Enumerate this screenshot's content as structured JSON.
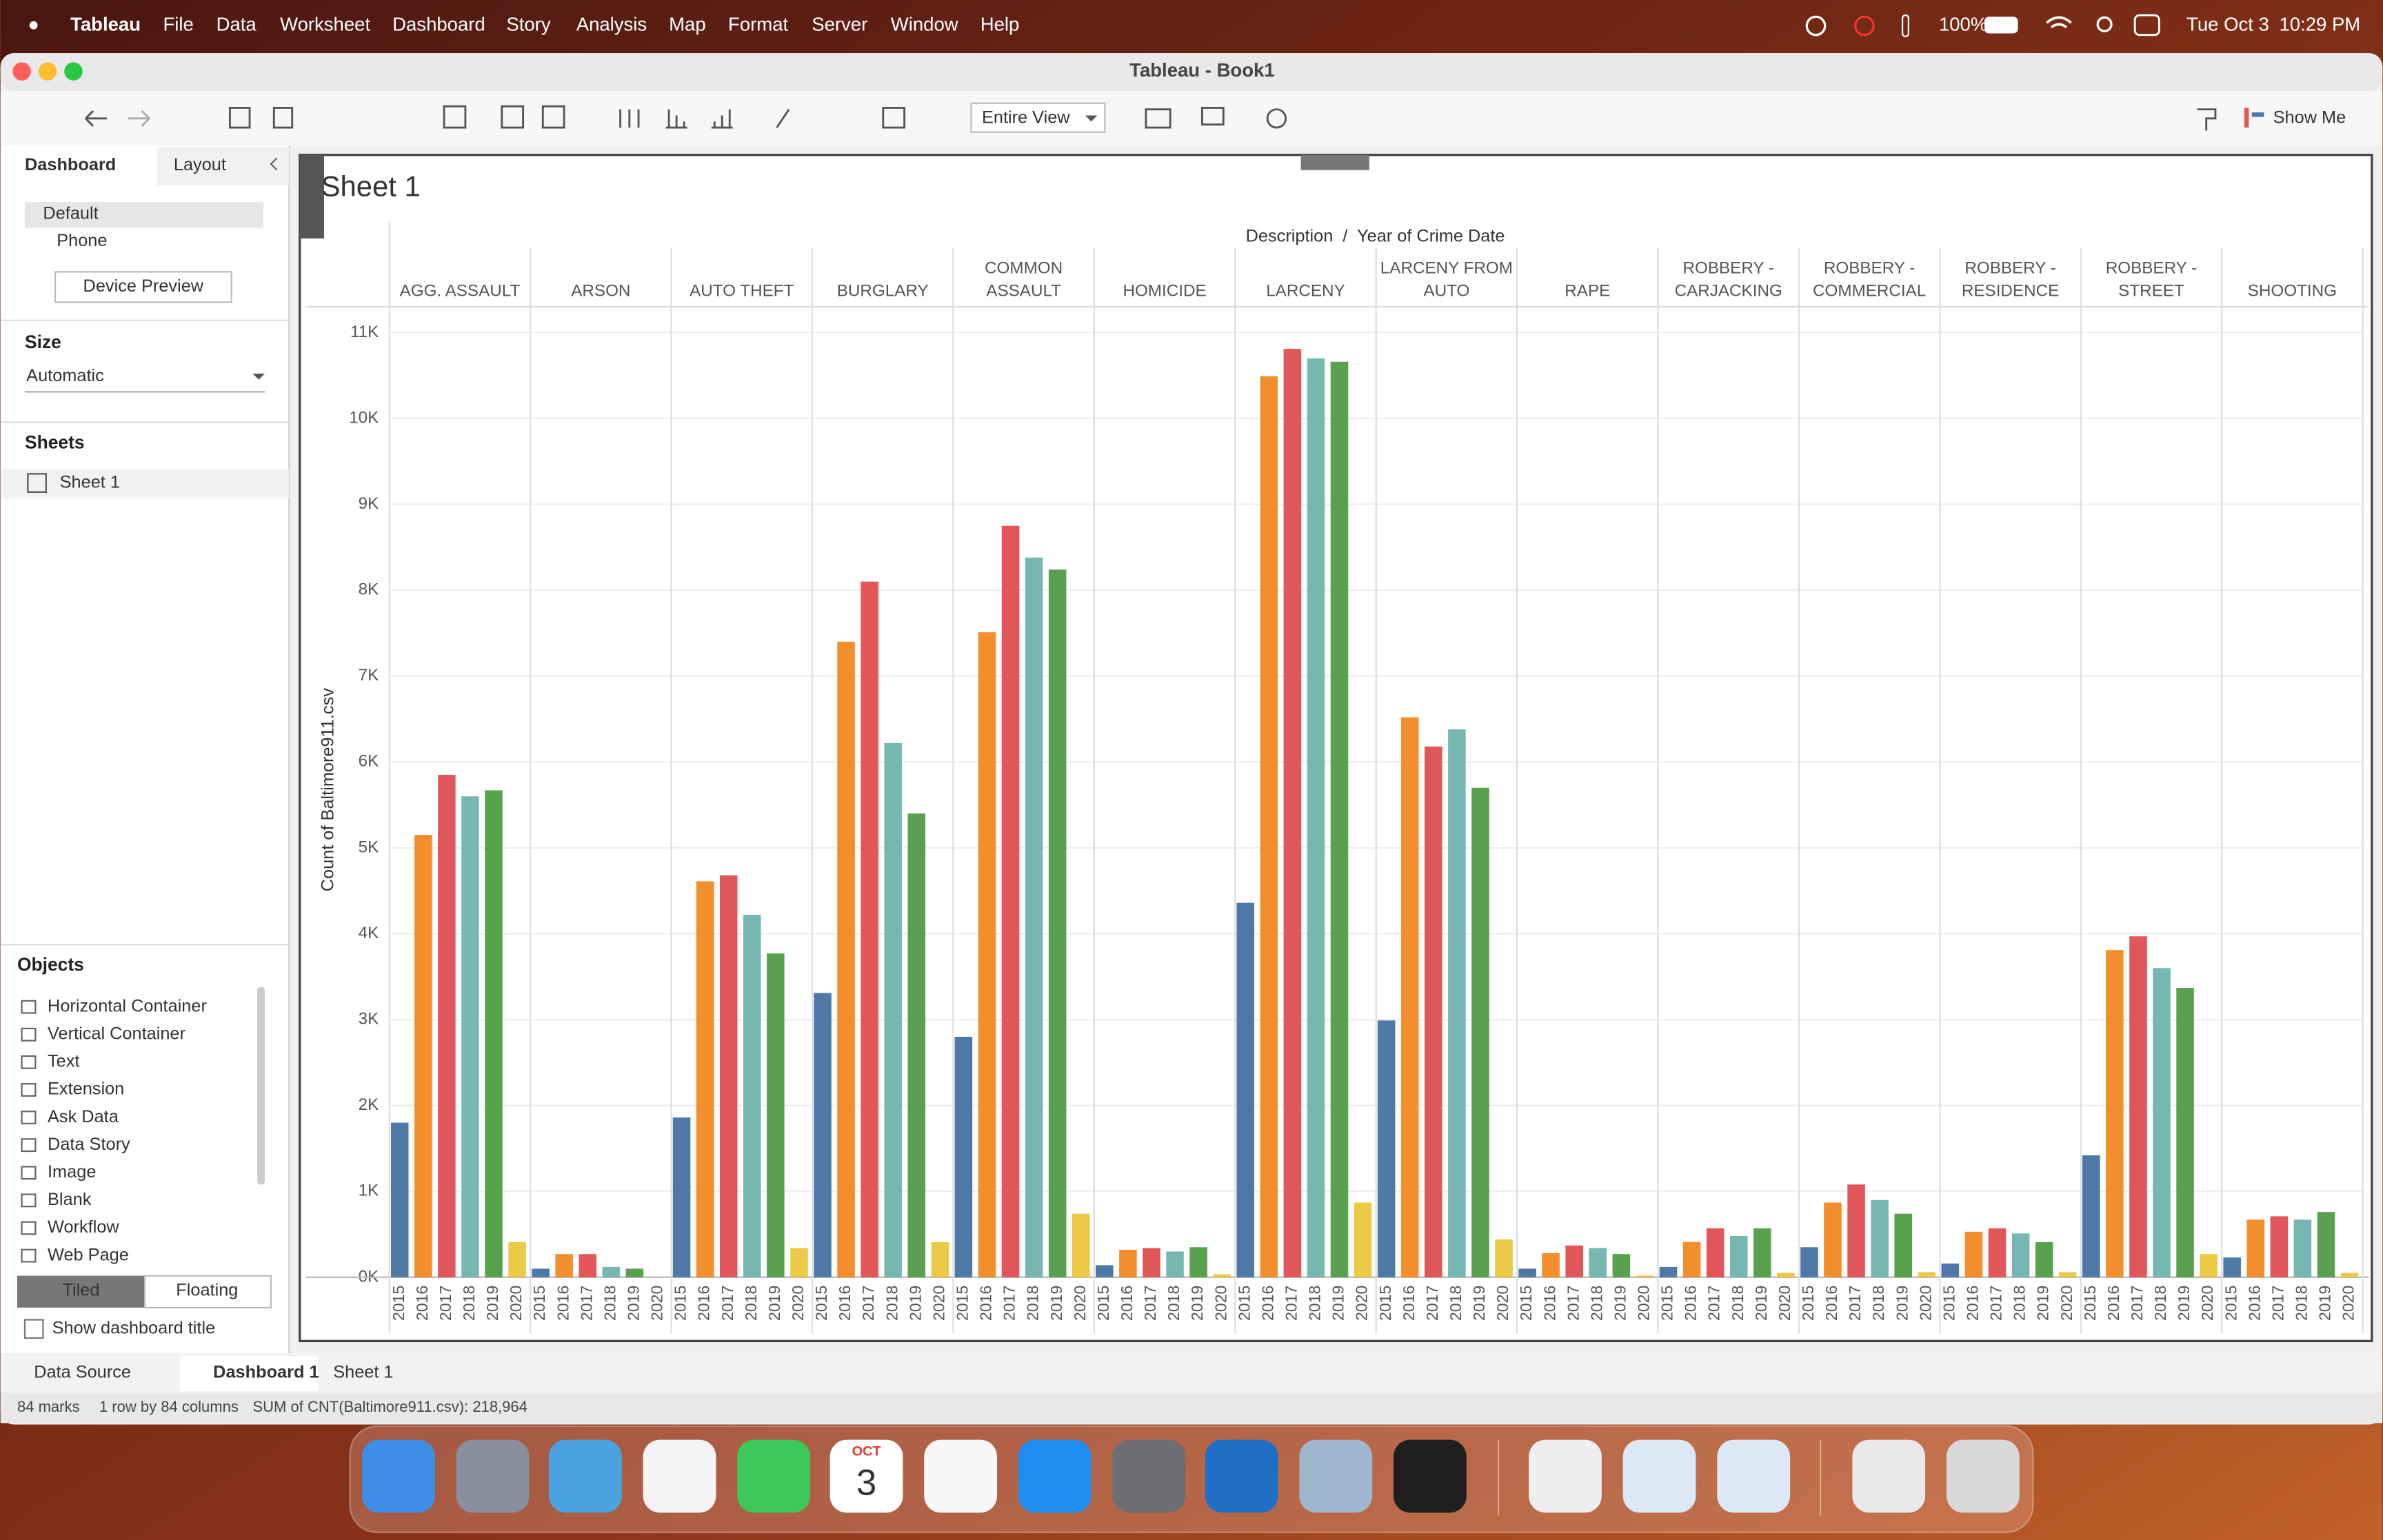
{
  "menu": {
    "app": "Tableau",
    "items": [
      "File",
      "Data",
      "Worksheet",
      "Dashboard",
      "Story",
      "Analysis",
      "Map",
      "Format",
      "Server",
      "Window",
      "Help"
    ],
    "battery": "100%",
    "date": "Tue Oct 3",
    "time": "10:29 PM"
  },
  "window_title": "Tableau - Book1",
  "toolbar": {
    "fit": "Entire View",
    "show_me": "Show Me"
  },
  "sidebar": {
    "tabs": [
      "Dashboard",
      "Layout"
    ],
    "devices": [
      "Default",
      "Phone"
    ],
    "device_preview": "Device Preview",
    "size_title": "Size",
    "size_value": "Automatic",
    "sheets_title": "Sheets",
    "sheets": [
      "Sheet 1"
    ],
    "objects_title": "Objects",
    "objects": [
      "Horizontal Container",
      "Vertical Container",
      "Text",
      "Extension",
      "Ask Data",
      "Data Story",
      "Image",
      "Blank",
      "Workflow",
      "Web Page"
    ],
    "layout_modes": [
      "Tiled",
      "Floating"
    ],
    "show_title": "Show dashboard title"
  },
  "tabs": [
    "Data Source",
    "Dashboard 1",
    "Sheet 1"
  ],
  "status_bar": [
    "84 marks",
    "1 row by 84 columns",
    "SUM of CNT(Baltimore911.csv): 218,964"
  ],
  "dock": {
    "calendar_month": "OCT",
    "calendar_day": "3"
  },
  "chart_data": {
    "type": "bar",
    "title": "Sheet 1",
    "x_label": "Description  /  Year of Crime Date",
    "y_label": "Count of Baltimore911.csv",
    "categories": [
      "AGG. ASSAULT",
      "ARSON",
      "AUTO THEFT",
      "BURGLARY",
      "COMMON ASSAULT",
      "HOMICIDE",
      "LARCENY",
      "LARCENY FROM AUTO",
      "RAPE",
      "ROBBERY - CARJACKING",
      "ROBBERY - COMMERCIAL",
      "ROBBERY - RESIDENCE",
      "ROBBERY - STREET",
      "SHOOTING"
    ],
    "series": [
      {
        "name": "2015",
        "color": "#4e79a7",
        "values": [
          1800,
          100,
          1860,
          3310,
          2800,
          140,
          4360,
          2990,
          100,
          120,
          350,
          160,
          1420,
          230
        ]
      },
      {
        "name": "2016",
        "color": "#f28e2b",
        "values": [
          5150,
          270,
          4610,
          7400,
          7510,
          320,
          10490,
          6520,
          280,
          410,
          870,
          530,
          3810,
          670
        ]
      },
      {
        "name": "2017",
        "color": "#e15759",
        "values": [
          5850,
          270,
          4680,
          8100,
          8750,
          340,
          10810,
          6180,
          370,
          570,
          1080,
          570,
          3970,
          710
        ]
      },
      {
        "name": "2018",
        "color": "#76b7b2",
        "values": [
          5600,
          120,
          4220,
          6220,
          8380,
          300,
          10700,
          6380,
          340,
          480,
          900,
          510,
          3600,
          670
        ]
      },
      {
        "name": "2019",
        "color": "#59a14f",
        "values": [
          5670,
          100,
          3770,
          5400,
          8240,
          350,
          10660,
          5700,
          270,
          570,
          740,
          410,
          3370,
          760
        ]
      },
      {
        "name": "2020",
        "color": "#edc948",
        "values": [
          410,
          0,
          340,
          410,
          740,
          35,
          870,
          440,
          20,
          50,
          60,
          60,
          270,
          50
        ]
      }
    ],
    "ylim": [
      0,
      11300
    ],
    "yticks": [
      {
        "value": 0,
        "label": "0K"
      },
      {
        "value": 1000,
        "label": "1K"
      },
      {
        "value": 2000,
        "label": "2K"
      },
      {
        "value": 3000,
        "label": "3K"
      },
      {
        "value": 4000,
        "label": "4K"
      },
      {
        "value": 5000,
        "label": "5K"
      },
      {
        "value": 6000,
        "label": "6K"
      },
      {
        "value": 7000,
        "label": "7K"
      },
      {
        "value": 8000,
        "label": "8K"
      },
      {
        "value": 9000,
        "label": "9K"
      },
      {
        "value": 10000,
        "label": "10K"
      },
      {
        "value": 11000,
        "label": "11K"
      }
    ],
    "grid": true
  }
}
